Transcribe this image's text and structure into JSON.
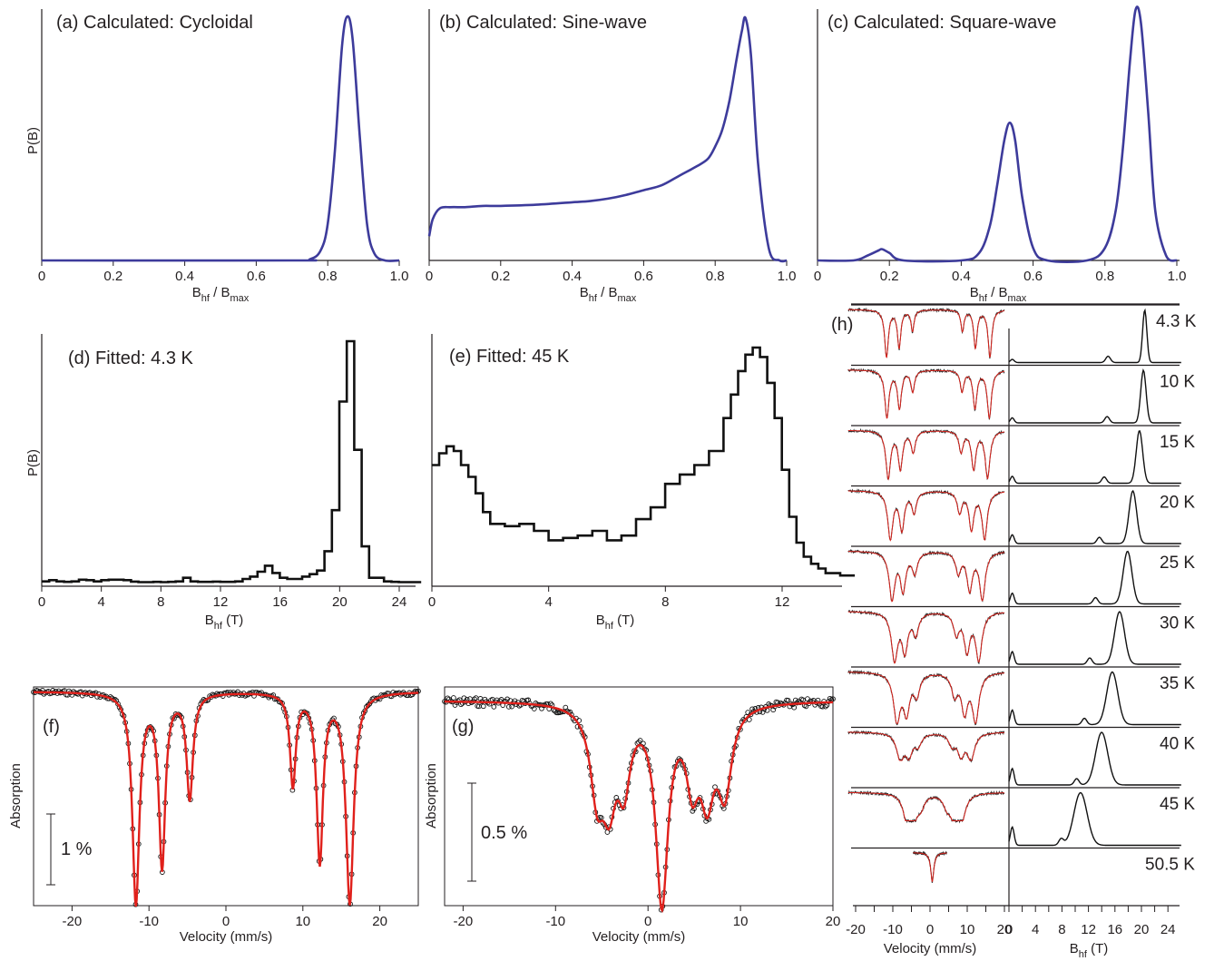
{
  "chart_data": [
    {
      "id": "a",
      "type": "line",
      "title": "(a) Calculated: Cycloidal",
      "ylabel": "P(B)",
      "xlabel": "B_hf / B_max",
      "xlim": [
        0,
        1.0
      ],
      "xticks": [
        "0",
        "0.2",
        "0.4",
        "0.6",
        "0.8",
        "1.0"
      ],
      "series": [
        {
          "x": [
            0,
            0.7,
            0.75,
            0.78,
            0.8,
            0.82,
            0.84,
            0.855,
            0.87,
            0.89,
            0.91,
            0.93,
            0.96,
            1.0
          ],
          "y": [
            0,
            0,
            0.005,
            0.04,
            0.15,
            0.45,
            0.88,
            1.0,
            0.9,
            0.5,
            0.15,
            0.03,
            0,
            0
          ]
        }
      ]
    },
    {
      "id": "b",
      "type": "line",
      "title": "(b) Calculated: Sine-wave",
      "xlabel": "B_hf / B_max",
      "xlim": [
        0,
        1.0
      ],
      "xticks": [
        "0",
        "0.2",
        "0.4",
        "0.6",
        "0.8",
        "1.0"
      ],
      "series": [
        {
          "x": [
            0,
            0.01,
            0.03,
            0.06,
            0.1,
            0.15,
            0.2,
            0.3,
            0.4,
            0.45,
            0.5,
            0.55,
            0.6,
            0.65,
            0.7,
            0.75,
            0.78,
            0.8,
            0.82,
            0.84,
            0.86,
            0.875,
            0.885,
            0.9,
            0.92,
            0.95,
            0.98,
            1.0
          ],
          "y": [
            0.1,
            0.17,
            0.215,
            0.22,
            0.22,
            0.225,
            0.225,
            0.23,
            0.24,
            0.245,
            0.255,
            0.27,
            0.29,
            0.31,
            0.35,
            0.39,
            0.42,
            0.47,
            0.54,
            0.66,
            0.83,
            0.95,
            1.0,
            0.85,
            0.4,
            0.05,
            0,
            0
          ]
        }
      ]
    },
    {
      "id": "c",
      "type": "line",
      "title": "(c) Calculated: Square-wave",
      "xlabel": "B_hf / B_max",
      "xlim": [
        0,
        1.0
      ],
      "xticks": [
        "0",
        "0.2",
        "0.4",
        "0.6",
        "0.8",
        "1.0"
      ],
      "series": [
        {
          "x": [
            0,
            0.1,
            0.14,
            0.17,
            0.18,
            0.2,
            0.24,
            0.4,
            0.45,
            0.48,
            0.5,
            0.52,
            0.535,
            0.55,
            0.57,
            0.6,
            0.64,
            0.75,
            0.8,
            0.83,
            0.85,
            0.87,
            0.885,
            0.9,
            0.92,
            0.94,
            0.97,
            1.0
          ],
          "y": [
            0,
            0,
            0.02,
            0.04,
            0.045,
            0.03,
            0,
            0,
            0.03,
            0.14,
            0.3,
            0.48,
            0.55,
            0.48,
            0.25,
            0.05,
            0,
            0,
            0.05,
            0.2,
            0.45,
            0.8,
            1.0,
            0.95,
            0.6,
            0.2,
            0.02,
            0
          ]
        }
      ]
    },
    {
      "id": "d",
      "type": "line",
      "title": "(d) Fitted: 4.3 K",
      "ylabel": "P(B)",
      "xlabel": "B_hf (T)",
      "xlim": [
        0,
        25
      ],
      "xticks": [
        "0",
        "4",
        "8",
        "12",
        "16",
        "20",
        "24"
      ],
      "series": [
        {
          "x": [
            0,
            0.5,
            1,
            1.5,
            2,
            2.5,
            3,
            3.5,
            4,
            4.5,
            5,
            5.5,
            6,
            6.5,
            7,
            7.5,
            8,
            8.5,
            9,
            9.5,
            10,
            10.5,
            11,
            11.5,
            12,
            12.5,
            13,
            13.5,
            14,
            14.5,
            15,
            15.5,
            16,
            16.5,
            17,
            17.5,
            18,
            18.5,
            19,
            19.5,
            20,
            20.5,
            21,
            21.5,
            22,
            22.5,
            23,
            23.5,
            24,
            24.5,
            25
          ],
          "y": [
            0.005,
            0.01,
            0.005,
            0.003,
            0.005,
            0.012,
            0.01,
            0.005,
            0.01,
            0.012,
            0.012,
            0.01,
            0.004,
            0.002,
            0.002,
            0.003,
            0.002,
            0.003,
            0.005,
            0.02,
            0.005,
            0.003,
            0.003,
            0.004,
            0.003,
            0.003,
            0.005,
            0.015,
            0.025,
            0.045,
            0.07,
            0.04,
            0.02,
            0.015,
            0.015,
            0.025,
            0.035,
            0.05,
            0.13,
            0.3,
            0.75,
            1.0,
            0.55,
            0.15,
            0.02,
            0.02,
            0.005,
            0.003,
            0.002,
            0.002,
            0.002
          ]
        }
      ]
    },
    {
      "id": "e",
      "type": "line",
      "title": "(e) Fitted: 45 K",
      "xlabel": "B_hf (T)",
      "xlim": [
        0,
        14
      ],
      "xticks": [
        "0",
        "4",
        "8",
        "12"
      ],
      "series": [
        {
          "x": [
            0,
            0.25,
            0.5,
            0.75,
            1,
            1.25,
            1.5,
            1.75,
            2,
            2.5,
            3,
            3.5,
            4,
            4.5,
            5,
            5.5,
            6,
            6.5,
            7,
            7.5,
            8,
            8.5,
            9,
            9.5,
            10,
            10.25,
            10.5,
            10.75,
            11,
            11.25,
            11.5,
            11.75,
            12,
            12.25,
            12.5,
            12.75,
            13,
            13.25,
            13.5,
            14
          ],
          "y": [
            0.5,
            0.55,
            0.58,
            0.56,
            0.5,
            0.45,
            0.38,
            0.3,
            0.25,
            0.24,
            0.25,
            0.22,
            0.18,
            0.19,
            0.2,
            0.22,
            0.18,
            0.2,
            0.27,
            0.32,
            0.42,
            0.46,
            0.5,
            0.56,
            0.7,
            0.8,
            0.9,
            0.97,
            1.0,
            0.96,
            0.85,
            0.7,
            0.48,
            0.28,
            0.17,
            0.11,
            0.08,
            0.06,
            0.04,
            0.03
          ]
        }
      ]
    },
    {
      "id": "f",
      "type": "scatter",
      "annotation": "(f)",
      "ylabel": "Absorption",
      "xlabel": "Velocity (mm/s)",
      "xlim": [
        -25,
        25
      ],
      "xticks": [
        "-20",
        "-10",
        "0",
        "10",
        "20"
      ],
      "scalebar": "1 %",
      "lines": [
        {
          "pos": -11.7,
          "depth": 1.0,
          "width": 0.55
        },
        {
          "pos": -8.3,
          "depth": 0.82,
          "width": 0.5
        },
        {
          "pos": -4.7,
          "depth": 0.5,
          "width": 0.5
        },
        {
          "pos": 8.7,
          "depth": 0.44,
          "width": 0.45
        },
        {
          "pos": 12.2,
          "depth": 0.8,
          "width": 0.5
        },
        {
          "pos": 16.1,
          "depth": 1.0,
          "width": 0.6
        }
      ]
    },
    {
      "id": "g",
      "type": "scatter",
      "annotation": "(g)",
      "ylabel": "Absorption",
      "xlabel": "Velocity (mm/s)",
      "xlim": [
        -22,
        20
      ],
      "xticks": [
        "-20",
        "-10",
        "0",
        "10",
        "20"
      ],
      "scalebar": "0.5 %",
      "lines": [
        {
          "pos": -5.5,
          "depth": 0.42,
          "width": 0.9
        },
        {
          "pos": -4.2,
          "depth": 0.42,
          "width": 0.9
        },
        {
          "pos": -2.6,
          "depth": 0.36,
          "width": 0.8
        },
        {
          "pos": 1.5,
          "depth": 1.0,
          "width": 0.8
        },
        {
          "pos": 4.8,
          "depth": 0.35,
          "width": 0.8
        },
        {
          "pos": 6.4,
          "depth": 0.42,
          "width": 0.9
        },
        {
          "pos": 8.3,
          "depth": 0.42,
          "width": 0.9
        }
      ]
    },
    {
      "id": "h",
      "type": "line",
      "annotation": "(h)",
      "xlabel_left": "Velocity (mm/s)",
      "xlabel_right": "B_hf (T)",
      "xticks_left": [
        "-20",
        "-10",
        "0",
        "10",
        "20"
      ],
      "xticks_right": [
        "0",
        "4",
        "8",
        "12",
        "16",
        "20",
        "24"
      ],
      "temperatures": [
        "4.3 K",
        "10 K",
        "15 K",
        "20 K",
        "25 K",
        "30 K",
        "35 K",
        "40 K",
        "45 K",
        "50.5 K"
      ],
      "main_peak_T": [
        20.5,
        20.3,
        19.7,
        18.7,
        17.9,
        16.7,
        15.6,
        14.0,
        10.8,
        null
      ]
    }
  ]
}
